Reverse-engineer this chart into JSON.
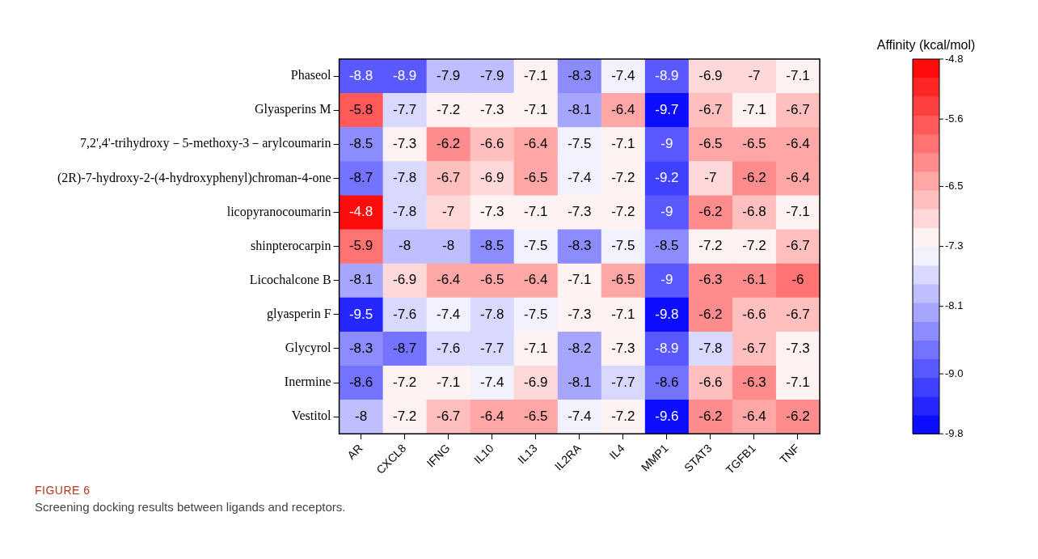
{
  "chart_data": {
    "type": "heatmap",
    "clabel": "Affinity (kcal/mol)",
    "annotations": [
      "FIGURE 6",
      "Screening docking results between ligands and receptors."
    ],
    "categories": [
      "AR",
      "CXCL8",
      "IFNG",
      "IL10",
      "IL13",
      "IL2RA",
      "IL4",
      "MMP1",
      "STAT3",
      "TGFB1",
      "TNF"
    ],
    "y_categories": [
      "Phaseol",
      "Glyasperins M",
      "7,2',4'-trihydroxy－5-methoxy-3－arylcoumarin",
      "(2R)-7-hydroxy-2-(4-hydroxyphenyl)chroman-4-one",
      "licopyranocoumarin",
      "shinpterocarpin",
      "Licochalcone B",
      "glyasperin F",
      "Glycyrol",
      "Inermine",
      "Vestitol"
    ],
    "cells": [
      [
        -8.8,
        -8.9,
        -7.9,
        -7.9,
        -7.1,
        -8.3,
        -7.4,
        -8.9,
        -6.9,
        -7,
        -7.1
      ],
      [
        -5.8,
        -7.7,
        -7.2,
        -7.3,
        -7.1,
        -8.1,
        -6.4,
        -9.7,
        -6.7,
        -7.1,
        -6.7
      ],
      [
        -8.5,
        -7.3,
        -6.2,
        -6.6,
        -6.4,
        -7.5,
        -7.1,
        -9,
        -6.5,
        -6.5,
        -6.4
      ],
      [
        -8.7,
        -7.8,
        -6.7,
        -6.9,
        -6.5,
        -7.4,
        -7.2,
        -9.2,
        -7,
        -6.2,
        -6.4
      ],
      [
        -4.8,
        -7.8,
        -7,
        -7.3,
        -7.1,
        -7.3,
        -7.2,
        -9,
        -6.2,
        -6.8,
        -7.1
      ],
      [
        -5.9,
        -8,
        -8,
        -8.5,
        -7.5,
        -8.3,
        -7.5,
        -8.5,
        -7.2,
        -7.2,
        -6.7
      ],
      [
        -8.1,
        -6.9,
        -6.4,
        -6.5,
        -6.4,
        -7.1,
        -6.5,
        -9,
        -6.3,
        -6.1,
        -6
      ],
      [
        -9.5,
        -7.6,
        -7.4,
        -7.8,
        -7.5,
        -7.3,
        -7.1,
        -9.8,
        -6.2,
        -6.6,
        -6.7
      ],
      [
        -8.3,
        -8.7,
        -7.6,
        -7.7,
        -7.1,
        -8.2,
        -7.3,
        -8.9,
        -7.8,
        -6.7,
        -7.3
      ],
      [
        -8.6,
        -7.2,
        -7.1,
        -7.4,
        -6.9,
        -8.1,
        -7.7,
        -8.6,
        -6.6,
        -6.3,
        -7.1
      ],
      [
        -8,
        -7.2,
        -6.7,
        -6.4,
        -6.5,
        -7.4,
        -7.2,
        -9.6,
        -6.2,
        -6.4,
        -6.2
      ]
    ],
    "clim": [
      -9.8,
      -4.8
    ],
    "cticks": [
      -4.8,
      -5.6,
      -6.5,
      -7.3,
      -8.1,
      {
        "value": -9,
        "label": "-9.0"
      },
      -9.8
    ],
    "data_labels": true
  }
}
